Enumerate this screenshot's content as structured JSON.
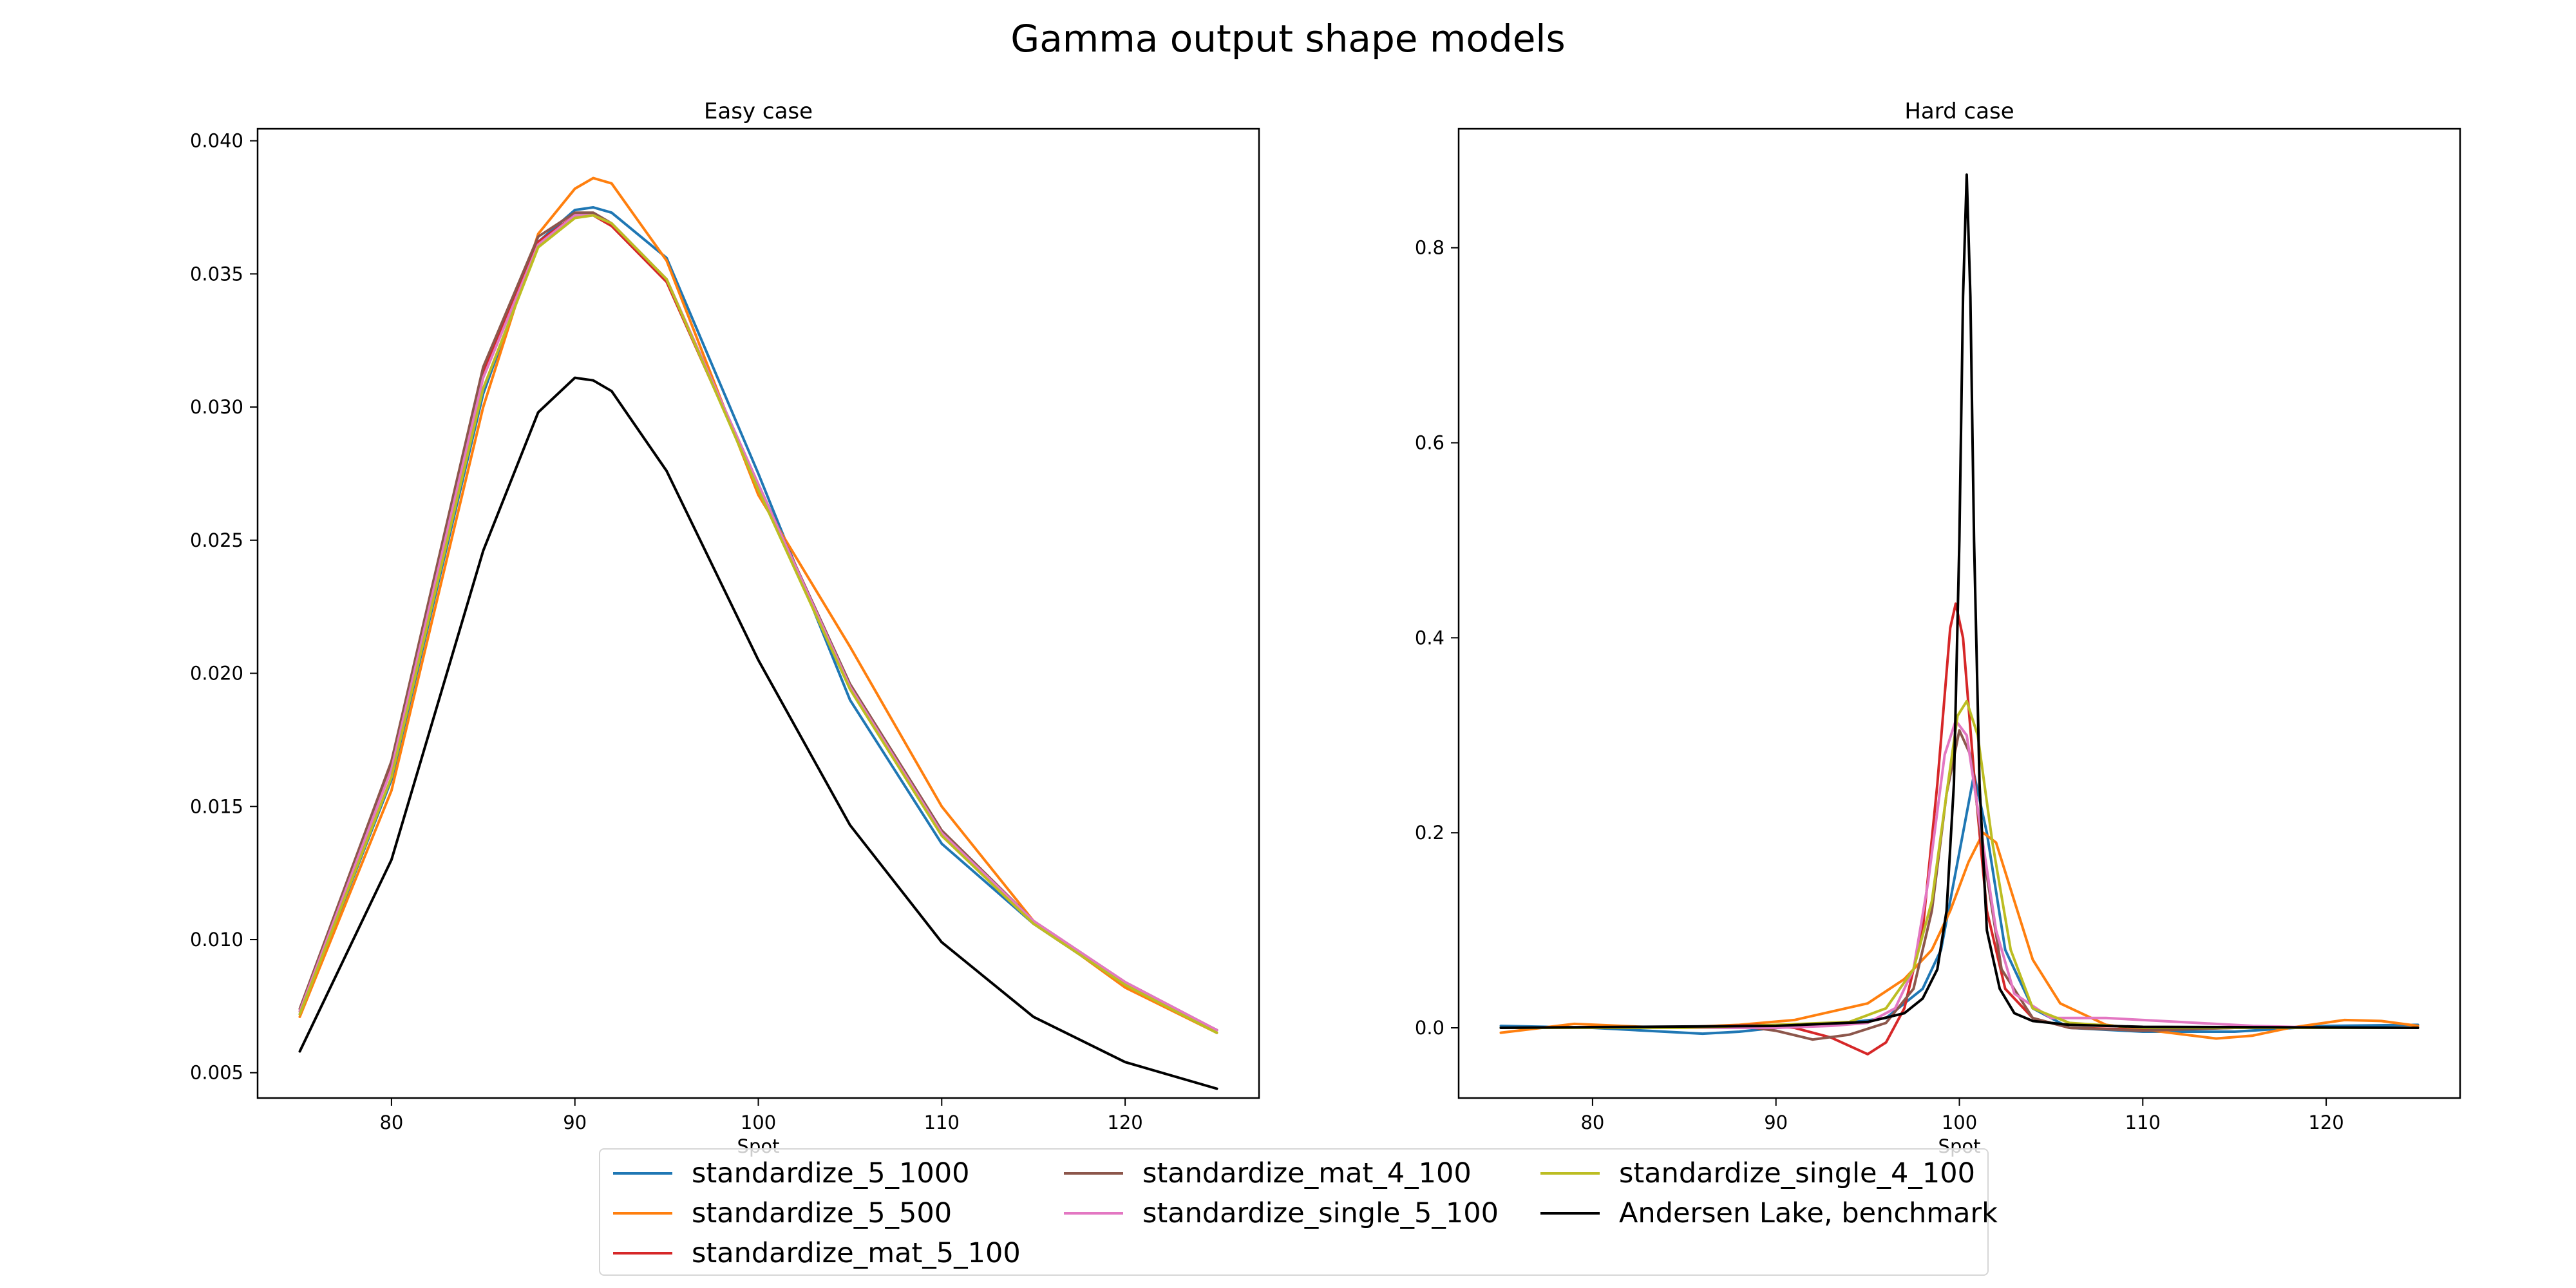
{
  "figure": {
    "title": "Gamma output shape models"
  },
  "legend": {
    "entries": [
      {
        "label": "standardize_5_1000",
        "color": "#1f77b4"
      },
      {
        "label": "standardize_5_500",
        "color": "#ff7f0e"
      },
      {
        "label": "standardize_mat_5_100",
        "color": "#d62728"
      },
      {
        "label": "standardize_mat_4_100",
        "color": "#8c564b"
      },
      {
        "label": "standardize_single_5_100",
        "color": "#e377c2"
      },
      {
        "label": "standardize_single_4_100",
        "color": "#bcbd22"
      },
      {
        "label": "Andersen Lake, benchmark",
        "color": "#000000"
      }
    ]
  },
  "chart_data": [
    {
      "type": "line",
      "title": "Easy case",
      "xlabel": "Spot",
      "ylabel": "",
      "xlim": [
        72.7,
        127.3
      ],
      "ylim": [
        0.00405,
        0.04045
      ],
      "xticks": [
        80,
        90,
        100,
        110,
        120
      ],
      "yticks": [
        0.005,
        0.01,
        0.015,
        0.02,
        0.025,
        0.03,
        0.035,
        0.04
      ],
      "ytick_labels": [
        "0.005",
        "0.010",
        "0.015",
        "0.020",
        "0.025",
        "0.030",
        "0.035",
        "0.040"
      ],
      "grid": false,
      "x": [
        75,
        80,
        85,
        88,
        90,
        91,
        92,
        95,
        100,
        105,
        110,
        115,
        120,
        125
      ],
      "series": [
        {
          "name": "standardize_5_1000",
          "color": "#1f77b4",
          "values": [
            0.0072,
            0.016,
            0.0305,
            0.0362,
            0.0374,
            0.0375,
            0.0373,
            0.0356,
            0.0275,
            0.019,
            0.0136,
            0.0106,
            0.0083,
            0.0066
          ]
        },
        {
          "name": "standardize_5_500",
          "color": "#ff7f0e",
          "values": [
            0.0071,
            0.0156,
            0.03,
            0.0365,
            0.0382,
            0.0386,
            0.0384,
            0.0355,
            0.0267,
            0.021,
            0.015,
            0.0107,
            0.0082,
            0.0065
          ]
        },
        {
          "name": "standardize_mat_5_100",
          "color": "#d62728",
          "values": [
            0.0073,
            0.0165,
            0.0313,
            0.0362,
            0.0372,
            0.0372,
            0.0368,
            0.0347,
            0.027,
            0.0195,
            0.014,
            0.0106,
            0.0083,
            0.0066
          ]
        },
        {
          "name": "standardize_mat_4_100",
          "color": "#8c564b",
          "values": [
            0.0074,
            0.0167,
            0.0315,
            0.0364,
            0.0373,
            0.0373,
            0.0369,
            0.0348,
            0.0271,
            0.0196,
            0.0141,
            0.0107,
            0.0084,
            0.0066
          ]
        },
        {
          "name": "standardize_single_5_100",
          "color": "#e377c2",
          "values": [
            0.0073,
            0.0164,
            0.0311,
            0.0361,
            0.0372,
            0.0372,
            0.0369,
            0.0348,
            0.0271,
            0.0195,
            0.014,
            0.0107,
            0.0084,
            0.0066
          ]
        },
        {
          "name": "standardize_single_4_100",
          "color": "#bcbd22",
          "values": [
            0.0072,
            0.0161,
            0.0307,
            0.036,
            0.0371,
            0.0372,
            0.0369,
            0.0348,
            0.0269,
            0.0194,
            0.0139,
            0.0106,
            0.0083,
            0.0065
          ]
        },
        {
          "name": "Andersen Lake, benchmark",
          "color": "#000000",
          "values": [
            0.0058,
            0.013,
            0.0246,
            0.0298,
            0.0311,
            0.031,
            0.0306,
            0.0276,
            0.0205,
            0.0143,
            0.0099,
            0.0071,
            0.0054,
            0.0044
          ]
        }
      ]
    },
    {
      "type": "line",
      "title": "Hard case",
      "xlabel": "Spot",
      "ylabel": "",
      "xlim": [
        72.7,
        127.3
      ],
      "ylim": [
        -0.072,
        0.922
      ],
      "xticks": [
        80,
        90,
        100,
        110,
        120
      ],
      "yticks": [
        0.0,
        0.2,
        0.4,
        0.6,
        0.8
      ],
      "ytick_labels": [
        "0.0",
        "0.2",
        "0.4",
        "0.6",
        "0.8"
      ],
      "grid": false,
      "series": [
        {
          "name": "standardize_5_1000",
          "color": "#1f77b4",
          "x": [
            75,
            80,
            86,
            88,
            90,
            93,
            96,
            98,
            99,
            100,
            100.8,
            101.5,
            102.5,
            104,
            106,
            110,
            115,
            120,
            125
          ],
          "y": [
            0.002,
            0.0,
            -0.006,
            -0.004,
            0.0,
            0.003,
            0.01,
            0.04,
            0.08,
            0.18,
            0.26,
            0.2,
            0.08,
            0.02,
            0.0,
            -0.004,
            -0.004,
            0.002,
            0.003
          ]
        },
        {
          "name": "standardize_5_500",
          "color": "#ff7f0e",
          "x": [
            75,
            79,
            84,
            88,
            91,
            95,
            97,
            98.5,
            99.5,
            100.5,
            101.3,
            102,
            103,
            104,
            105.5,
            108,
            111,
            114,
            116,
            118,
            121,
            123,
            125
          ],
          "y": [
            -0.005,
            0.004,
            0.0,
            0.003,
            0.008,
            0.025,
            0.05,
            0.08,
            0.12,
            0.17,
            0.2,
            0.19,
            0.13,
            0.07,
            0.025,
            0.003,
            -0.004,
            -0.011,
            -0.008,
            0.0,
            0.008,
            0.007,
            0.002
          ]
        },
        {
          "name": "standardize_mat_5_100",
          "color": "#d62728",
          "x": [
            75,
            85,
            89,
            91,
            93,
            95,
            96,
            97,
            98,
            98.8,
            99.5,
            99.8,
            100.2,
            100.8,
            101.5,
            102.5,
            104,
            106,
            110,
            115,
            120,
            125
          ],
          "y": [
            0.0,
            0.0,
            0.003,
            0.0,
            -0.01,
            -0.027,
            -0.015,
            0.02,
            0.1,
            0.25,
            0.41,
            0.435,
            0.4,
            0.26,
            0.12,
            0.04,
            0.01,
            0.0,
            -0.002,
            0.0,
            0.0,
            0.0
          ]
        },
        {
          "name": "standardize_mat_4_100",
          "color": "#8c564b",
          "x": [
            75,
            85,
            88,
            90,
            92,
            94,
            96,
            97.5,
            98.5,
            99.3,
            100,
            100.6,
            101.3,
            102.3,
            104,
            106,
            110,
            115,
            120,
            125
          ],
          "y": [
            0.0,
            0.0,
            0.002,
            -0.003,
            -0.012,
            -0.007,
            0.005,
            0.04,
            0.12,
            0.24,
            0.305,
            0.28,
            0.18,
            0.06,
            0.01,
            0.0,
            -0.003,
            0.0,
            0.0,
            0.0
          ]
        },
        {
          "name": "standardize_single_5_100",
          "color": "#e377c2",
          "x": [
            75,
            85,
            90,
            93,
            95,
            96.5,
            97.5,
            98.3,
            99.2,
            99.8,
            100.4,
            101.2,
            102,
            103,
            105,
            108,
            112,
            116,
            120,
            125
          ],
          "y": [
            0.0,
            0.0,
            0.0,
            0.002,
            0.005,
            0.02,
            0.06,
            0.15,
            0.28,
            0.315,
            0.3,
            0.2,
            0.1,
            0.035,
            0.01,
            0.01,
            0.006,
            0.002,
            0.0,
            0.0
          ]
        },
        {
          "name": "standardize_single_4_100",
          "color": "#bcbd22",
          "x": [
            75,
            85,
            90,
            94,
            96,
            97.5,
            98.5,
            99.3,
            99.9,
            100.4,
            101,
            101.8,
            102.8,
            104,
            106,
            110,
            115,
            120,
            125
          ],
          "y": [
            0.0,
            0.0,
            0.003,
            0.006,
            0.02,
            0.06,
            0.13,
            0.24,
            0.32,
            0.335,
            0.3,
            0.19,
            0.08,
            0.02,
            0.005,
            0.0,
            0.0,
            0.0,
            0.0
          ]
        },
        {
          "name": "Andersen Lake, benchmark",
          "color": "#000000",
          "x": [
            75,
            90,
            95,
            97,
            98,
            98.8,
            99.3,
            99.7,
            100.0,
            100.2,
            100.4,
            100.6,
            100.8,
            101.1,
            101.5,
            102.2,
            103,
            104,
            106,
            110,
            125
          ],
          "y": [
            0.0,
            0.002,
            0.006,
            0.015,
            0.03,
            0.06,
            0.12,
            0.25,
            0.5,
            0.75,
            0.875,
            0.75,
            0.5,
            0.25,
            0.1,
            0.04,
            0.015,
            0.007,
            0.003,
            0.001,
            0.0
          ]
        }
      ]
    }
  ]
}
